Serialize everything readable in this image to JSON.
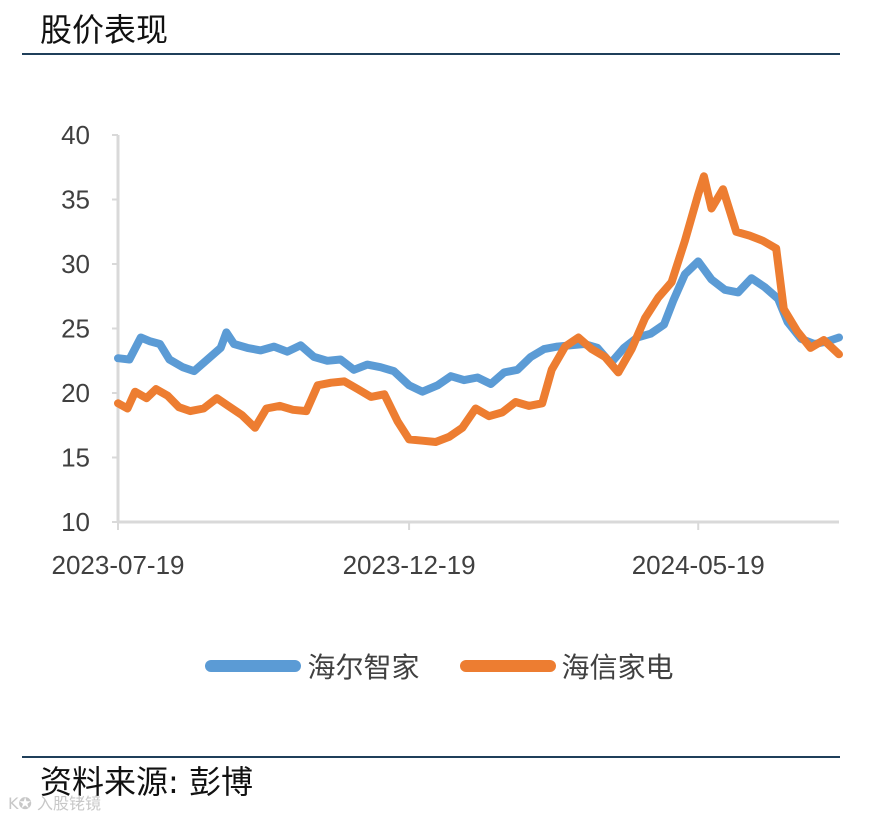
{
  "header": {
    "title": "股价表现"
  },
  "footer": {
    "source": "资料来源: 彭博",
    "watermark": "K✪ 入股铑镜"
  },
  "chart_data": {
    "type": "line",
    "title": "",
    "xlabel": "",
    "ylabel": "",
    "ylim": [
      10,
      40
    ],
    "yticks": [
      10,
      15,
      20,
      25,
      30,
      35,
      40
    ],
    "xlim": [
      "2023-07-19",
      "2024-08-01"
    ],
    "xticks": [
      "2023-07-19",
      "2023-12-19",
      "2024-05-19"
    ],
    "grid": false,
    "legend_position": "bottom",
    "series": [
      {
        "name": "海尔智家",
        "color": "#5b9bd5",
        "points": [
          [
            "2023-07-19",
            22.7
          ],
          [
            "2023-07-25",
            22.6
          ],
          [
            "2023-07-31",
            24.3
          ],
          [
            "2023-08-05",
            24.0
          ],
          [
            "2023-08-10",
            23.8
          ],
          [
            "2023-08-15",
            22.6
          ],
          [
            "2023-08-22",
            22.0
          ],
          [
            "2023-08-28",
            21.7
          ],
          [
            "2023-09-04",
            22.6
          ],
          [
            "2023-09-11",
            23.5
          ],
          [
            "2023-09-14",
            24.7
          ],
          [
            "2023-09-18",
            23.8
          ],
          [
            "2023-09-25",
            23.5
          ],
          [
            "2023-10-02",
            23.3
          ],
          [
            "2023-10-09",
            23.6
          ],
          [
            "2023-10-16",
            23.2
          ],
          [
            "2023-10-23",
            23.7
          ],
          [
            "2023-10-30",
            22.8
          ],
          [
            "2023-11-06",
            22.5
          ],
          [
            "2023-11-13",
            22.6
          ],
          [
            "2023-11-20",
            21.8
          ],
          [
            "2023-11-27",
            22.2
          ],
          [
            "2023-12-04",
            22.0
          ],
          [
            "2023-12-11",
            21.7
          ],
          [
            "2023-12-19",
            20.6
          ],
          [
            "2023-12-26",
            20.1
          ],
          [
            "2024-01-03",
            20.6
          ],
          [
            "2024-01-10",
            21.3
          ],
          [
            "2024-01-17",
            21.0
          ],
          [
            "2024-01-24",
            21.2
          ],
          [
            "2024-01-31",
            20.7
          ],
          [
            "2024-02-07",
            21.6
          ],
          [
            "2024-02-14",
            21.8
          ],
          [
            "2024-02-21",
            22.8
          ],
          [
            "2024-02-28",
            23.4
          ],
          [
            "2024-03-06",
            23.6
          ],
          [
            "2024-03-13",
            23.7
          ],
          [
            "2024-03-20",
            23.8
          ],
          [
            "2024-03-27",
            23.5
          ],
          [
            "2024-04-03",
            22.3
          ],
          [
            "2024-04-10",
            23.5
          ],
          [
            "2024-04-17",
            24.3
          ],
          [
            "2024-04-24",
            24.6
          ],
          [
            "2024-05-01",
            25.3
          ],
          [
            "2024-05-06",
            27.2
          ],
          [
            "2024-05-12",
            29.2
          ],
          [
            "2024-05-19",
            30.2
          ],
          [
            "2024-05-26",
            28.8
          ],
          [
            "2024-06-02",
            28.0
          ],
          [
            "2024-06-09",
            27.8
          ],
          [
            "2024-06-16",
            28.9
          ],
          [
            "2024-06-23",
            28.2
          ],
          [
            "2024-06-30",
            27.3
          ],
          [
            "2024-07-05",
            25.5
          ],
          [
            "2024-07-12",
            24.2
          ],
          [
            "2024-07-19",
            23.8
          ],
          [
            "2024-07-26",
            24.0
          ],
          [
            "2024-08-01",
            24.3
          ]
        ]
      },
      {
        "name": "海信家电",
        "color": "#ed7d31",
        "points": [
          [
            "2023-07-19",
            19.2
          ],
          [
            "2023-07-24",
            18.8
          ],
          [
            "2023-07-28",
            20.1
          ],
          [
            "2023-08-03",
            19.6
          ],
          [
            "2023-08-08",
            20.3
          ],
          [
            "2023-08-14",
            19.8
          ],
          [
            "2023-08-20",
            18.9
          ],
          [
            "2023-08-26",
            18.6
          ],
          [
            "2023-09-02",
            18.8
          ],
          [
            "2023-09-09",
            19.6
          ],
          [
            "2023-09-15",
            19.0
          ],
          [
            "2023-09-22",
            18.3
          ],
          [
            "2023-09-29",
            17.3
          ],
          [
            "2023-10-05",
            18.8
          ],
          [
            "2023-10-12",
            19.0
          ],
          [
            "2023-10-19",
            18.7
          ],
          [
            "2023-10-26",
            18.6
          ],
          [
            "2023-11-01",
            20.6
          ],
          [
            "2023-11-08",
            20.8
          ],
          [
            "2023-11-15",
            20.9
          ],
          [
            "2023-11-22",
            20.3
          ],
          [
            "2023-11-29",
            19.7
          ],
          [
            "2023-12-06",
            19.9
          ],
          [
            "2023-12-13",
            17.8
          ],
          [
            "2023-12-19",
            16.4
          ],
          [
            "2023-12-26",
            16.3
          ],
          [
            "2024-01-02",
            16.2
          ],
          [
            "2024-01-09",
            16.6
          ],
          [
            "2024-01-16",
            17.3
          ],
          [
            "2024-01-23",
            18.8
          ],
          [
            "2024-01-30",
            18.2
          ],
          [
            "2024-02-06",
            18.5
          ],
          [
            "2024-02-13",
            19.3
          ],
          [
            "2024-02-20",
            19.0
          ],
          [
            "2024-02-27",
            19.2
          ],
          [
            "2024-03-03",
            21.8
          ],
          [
            "2024-03-10",
            23.6
          ],
          [
            "2024-03-17",
            24.3
          ],
          [
            "2024-03-24",
            23.4
          ],
          [
            "2024-03-31",
            22.8
          ],
          [
            "2024-04-07",
            21.6
          ],
          [
            "2024-04-14",
            23.4
          ],
          [
            "2024-04-21",
            25.8
          ],
          [
            "2024-04-28",
            27.4
          ],
          [
            "2024-05-05",
            28.6
          ],
          [
            "2024-05-12",
            31.8
          ],
          [
            "2024-05-19",
            35.4
          ],
          [
            "2024-05-22",
            36.8
          ],
          [
            "2024-05-26",
            34.3
          ],
          [
            "2024-06-01",
            35.8
          ],
          [
            "2024-06-08",
            32.5
          ],
          [
            "2024-06-15",
            32.2
          ],
          [
            "2024-06-22",
            31.8
          ],
          [
            "2024-06-29",
            31.2
          ],
          [
            "2024-07-03",
            26.5
          ],
          [
            "2024-07-10",
            24.8
          ],
          [
            "2024-07-17",
            23.5
          ],
          [
            "2024-07-24",
            24.1
          ],
          [
            "2024-08-01",
            23.0
          ]
        ]
      }
    ]
  }
}
